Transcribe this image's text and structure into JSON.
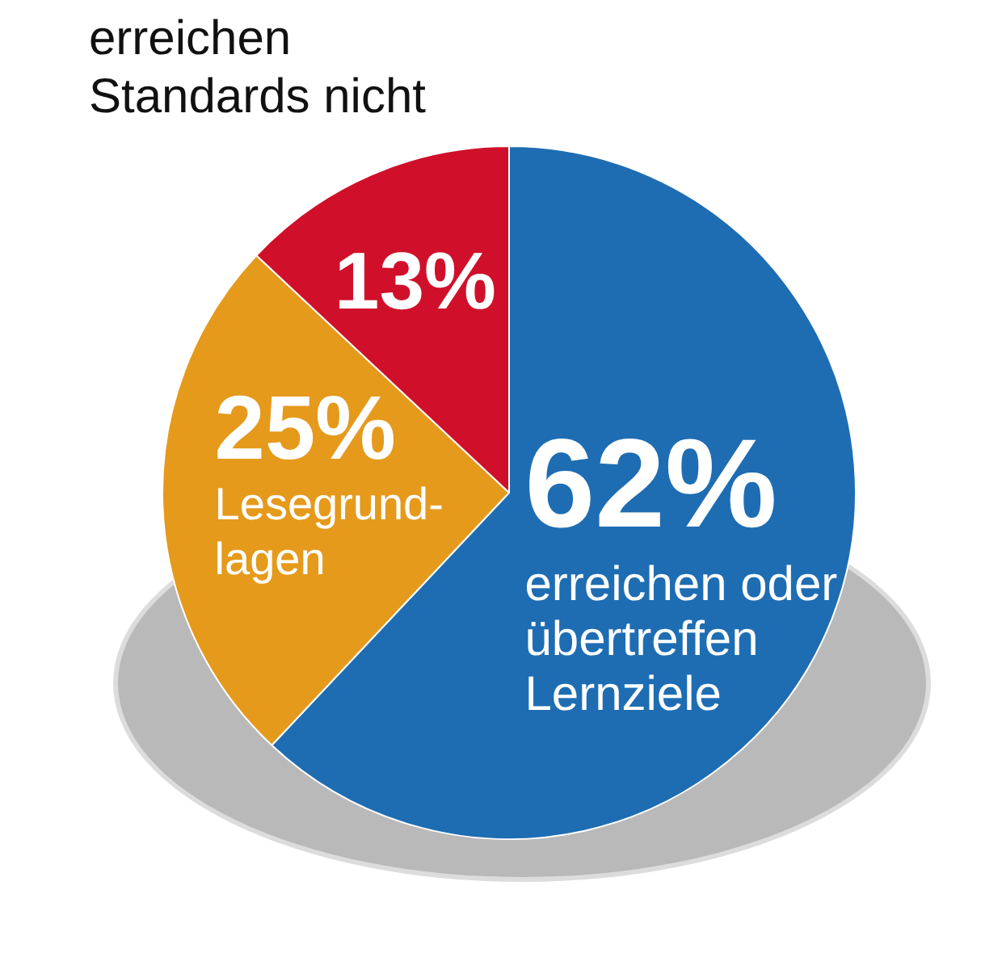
{
  "chart_data": {
    "type": "pie",
    "categories": [
      "erreichen oder\nübertreffen\nLernziele",
      "Lesegrund-\nlagen",
      "erreichen\nStandards nicht"
    ],
    "values": [
      62,
      25,
      13
    ],
    "colors": [
      "#1e6db3",
      "#e59a1c",
      "#d0102a"
    ],
    "value_labels": [
      "62%",
      "25%",
      "13%"
    ],
    "legend": false
  }
}
